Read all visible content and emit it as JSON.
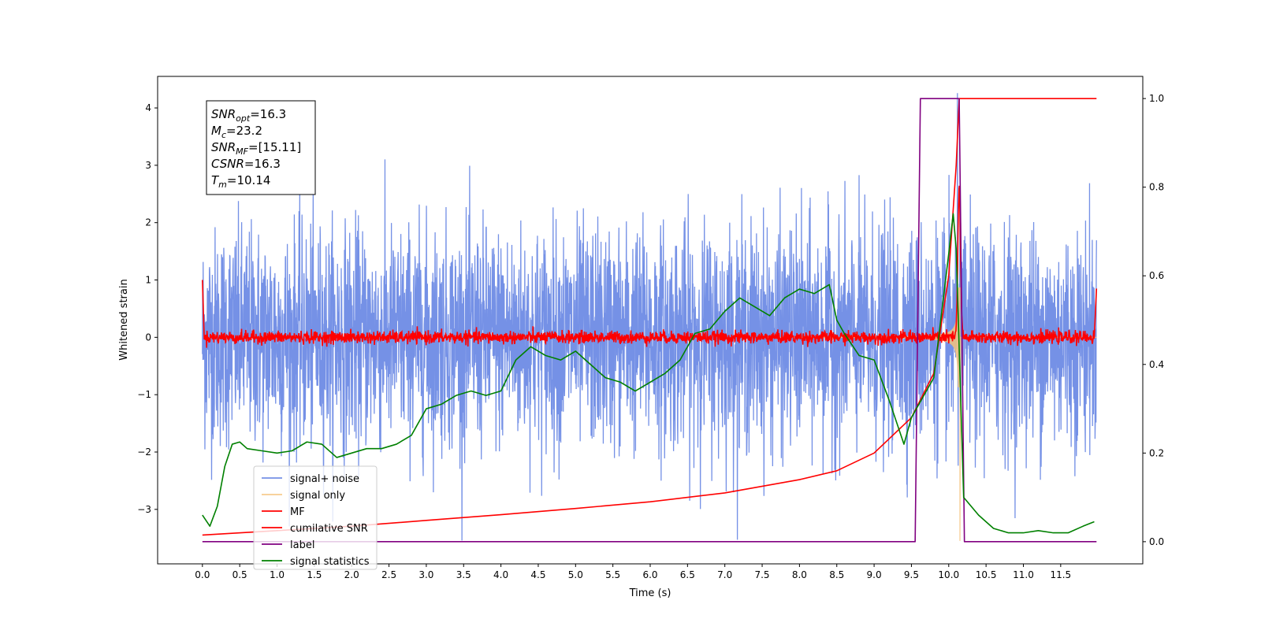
{
  "chart_data": {
    "type": "line",
    "title": "",
    "xlabel": "Time (s)",
    "ylabel": "Whitened strain",
    "y2label": "",
    "xlim": [
      -0.6,
      12.6
    ],
    "ylim": [
      -3.95,
      4.55
    ],
    "y2lim": [
      -0.05,
      1.05
    ],
    "x_ticks": [
      0.0,
      0.5,
      1.0,
      1.5,
      2.0,
      2.5,
      3.0,
      3.5,
      4.0,
      4.5,
      5.0,
      5.5,
      6.0,
      6.5,
      7.0,
      7.5,
      8.0,
      8.5,
      9.0,
      9.5,
      10.0,
      10.5,
      11.0,
      11.5
    ],
    "x_tick_labels": [
      "0.0",
      "0.5",
      "1.0",
      "1.5",
      "2.0",
      "2.5",
      "3.0",
      "3.5",
      "4.0",
      "4.5",
      "5.0",
      "5.5",
      "6.0",
      "6.5",
      "7.0",
      "7.5",
      "8.0",
      "8.5",
      "9.0",
      "9.5",
      "10.0",
      "10.5",
      "11.0",
      "11.5"
    ],
    "y_ticks": [
      -3,
      -2,
      -1,
      0,
      1,
      2,
      3,
      4
    ],
    "y_tick_labels": [
      "−3",
      "−2",
      "−1",
      "0",
      "1",
      "2",
      "3",
      "4"
    ],
    "y2_ticks": [
      0.0,
      0.2,
      0.4,
      0.6,
      0.8,
      1.0
    ],
    "y2_tick_labels": [
      "0.0",
      "0.2",
      "0.4",
      "0.6",
      "0.8",
      "1.0"
    ],
    "grid": false,
    "legend_position": "bottom-left",
    "info_box": [
      {
        "base": "SNR",
        "sub": "opt",
        "value": "=16.3"
      },
      {
        "base": "M",
        "sub": "c",
        "value": "=23.2"
      },
      {
        "base": "SNR",
        "sub": "MF",
        "value": "=[15.11]"
      },
      {
        "base": "CSNR",
        "sub": "",
        "value": "=16.3"
      },
      {
        "base": "T",
        "sub": "m",
        "value": "=10.14"
      }
    ],
    "series": [
      {
        "name": "signal+ noise",
        "axis": "left",
        "color": "#7591e6",
        "kind": "noise",
        "amplitude": 0.95,
        "t_range": [
          0.0,
          11.98
        ]
      },
      {
        "name": "signal only",
        "axis": "left",
        "color": "#f5c27a",
        "kind": "chirp",
        "merger_time": 10.14,
        "peak_amplitude": 3.4
      },
      {
        "name": "MF",
        "axis": "left",
        "color": "#ff0000",
        "kind": "matched-filter",
        "noise_amplitude": 0.09,
        "edge_values": [
          1.0,
          0.85
        ]
      },
      {
        "name": "cumilative SNR",
        "axis": "right",
        "color": "#ff0000",
        "x": [
          0.0,
          1.0,
          2.0,
          3.0,
          4.0,
          5.0,
          6.0,
          7.0,
          8.0,
          8.5,
          9.0,
          9.5,
          9.8,
          10.0,
          10.1,
          10.14,
          11.98
        ],
        "y": [
          0.015,
          0.025,
          0.035,
          0.048,
          0.061,
          0.075,
          0.09,
          0.11,
          0.14,
          0.16,
          0.2,
          0.28,
          0.38,
          0.6,
          0.85,
          1.0,
          1.0
        ]
      },
      {
        "name": "label",
        "axis": "right",
        "color": "#800080",
        "x": [
          0.0,
          9.55,
          9.62,
          10.14,
          10.21,
          11.98
        ],
        "y": [
          0.0,
          0.0,
          1.0,
          1.0,
          0.0,
          0.0
        ]
      },
      {
        "name": "signal statistics",
        "axis": "right",
        "color": "#008000",
        "x": [
          0.0,
          0.1,
          0.2,
          0.3,
          0.4,
          0.5,
          0.6,
          0.8,
          1.0,
          1.2,
          1.4,
          1.6,
          1.8,
          2.0,
          2.2,
          2.4,
          2.6,
          2.8,
          3.0,
          3.2,
          3.4,
          3.6,
          3.8,
          4.0,
          4.2,
          4.4,
          4.6,
          4.8,
          5.0,
          5.2,
          5.4,
          5.6,
          5.8,
          6.0,
          6.2,
          6.4,
          6.6,
          6.8,
          7.0,
          7.2,
          7.4,
          7.6,
          7.8,
          8.0,
          8.2,
          8.4,
          8.5,
          8.6,
          8.8,
          9.0,
          9.2,
          9.4,
          9.5,
          9.6,
          9.8,
          10.0,
          10.06,
          10.1,
          10.2,
          10.4,
          10.6,
          10.8,
          11.0,
          11.2,
          11.4,
          11.6,
          11.8,
          11.95
        ],
        "y": [
          0.06,
          0.035,
          0.08,
          0.17,
          0.22,
          0.225,
          0.21,
          0.205,
          0.2,
          0.205,
          0.225,
          0.22,
          0.19,
          0.2,
          0.21,
          0.21,
          0.22,
          0.24,
          0.3,
          0.31,
          0.33,
          0.34,
          0.33,
          0.34,
          0.41,
          0.44,
          0.42,
          0.41,
          0.43,
          0.4,
          0.37,
          0.36,
          0.34,
          0.36,
          0.38,
          0.41,
          0.47,
          0.48,
          0.52,
          0.55,
          0.53,
          0.51,
          0.55,
          0.57,
          0.56,
          0.58,
          0.5,
          0.47,
          0.42,
          0.41,
          0.32,
          0.22,
          0.28,
          0.31,
          0.37,
          0.65,
          0.74,
          0.66,
          0.1,
          0.06,
          0.03,
          0.02,
          0.02,
          0.025,
          0.02,
          0.02,
          0.035,
          0.045
        ]
      }
    ]
  }
}
